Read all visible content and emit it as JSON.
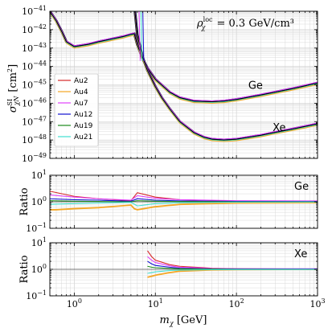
{
  "chart_data": [
    {
      "type": "line",
      "panel": "top",
      "xscale": "log",
      "yscale": "log",
      "xlim": [
        0.5,
        1000
      ],
      "ylim": [
        1e-49,
        1e-41
      ],
      "ylabel": "σ^SI_χN [cm²]",
      "yticks": [
        {
          "value": 1e-49,
          "base": "10",
          "exp": "−49"
        },
        {
          "value": 1e-48,
          "base": "10",
          "exp": "−48"
        },
        {
          "value": 1e-47,
          "base": "10",
          "exp": "−47"
        },
        {
          "value": 1e-46,
          "base": "10",
          "exp": "−46"
        },
        {
          "value": 1e-45,
          "base": "10",
          "exp": "−45"
        },
        {
          "value": 1e-44,
          "base": "10",
          "exp": "−44"
        },
        {
          "value": 1e-43,
          "base": "10",
          "exp": "−43"
        },
        {
          "value": 1e-42,
          "base": "10",
          "exp": "−42"
        },
        {
          "value": 1e-41,
          "base": "10",
          "exp": "−41"
        }
      ],
      "annotation": "ρ^loc_χ = 0.3 GeV/cm³",
      "annotation_parts": {
        "sym": "ρ",
        "sup": "loc",
        "sub": "χ",
        "rest": " = 0.3 GeV/cm³"
      },
      "curve_labels": [
        {
          "text": "Ge",
          "x": 140,
          "y": 6e-46
        },
        {
          "text": "Xe",
          "x": 280,
          "y": 3e-48
        }
      ],
      "legend": {
        "placement": "lower-left",
        "entries": [
          {
            "name": "Au2",
            "color": "#d62728"
          },
          {
            "name": "Au4",
            "color": "#f5a623"
          },
          {
            "name": "Au7",
            "color": "#e040fb"
          },
          {
            "name": "Au12",
            "color": "#1010d0"
          },
          {
            "name": "Au19",
            "color": "#1a8a1a"
          },
          {
            "name": "Au21",
            "color": "#40e0d0"
          }
        ]
      },
      "series": [
        {
          "target": "Ge",
          "x": [
            0.5,
            0.6,
            0.7,
            0.8,
            1,
            1.5,
            2,
            3,
            4,
            5,
            5.5,
            6,
            7,
            8,
            10,
            15,
            20,
            30,
            50,
            70,
            100,
            200,
            300,
            500,
            1000
          ],
          "y": [
            1e-41,
            3e-42,
            8e-43,
            2.2e-43,
            1.2e-43,
            1.6e-43,
            2.2e-43,
            3.2e-43,
            4.2e-43,
            5.5e-43,
            6e-43,
            1.5e-43,
            2.5e-44,
            8e-45,
            2e-45,
            4e-46,
            2e-46,
            1.3e-46,
            1.2e-46,
            1.3e-46,
            1.6e-46,
            2.8e-46,
            4e-46,
            6.3e-46,
            1.25e-45
          ]
        },
        {
          "target": "Xe",
          "x": [
            5.6,
            6,
            7,
            8,
            10,
            12,
            15,
            20,
            30,
            40,
            50,
            70,
            100,
            200,
            300,
            500,
            1000
          ],
          "y": [
            1e-41,
            5e-43,
            3e-44,
            6e-45,
            8e-46,
            2e-46,
            5e-47,
            1e-47,
            2.5e-48,
            1.4e-48,
            1.1e-48,
            1e-48,
            1.1e-48,
            1.8e-48,
            2.6e-48,
            4e-48,
            7.5e-48
          ]
        }
      ]
    },
    {
      "type": "line",
      "panel": "middle",
      "panel_label": "Ge",
      "xscale": "log",
      "yscale": "log",
      "xlim": [
        0.5,
        1000
      ],
      "ylim": [
        0.1,
        10
      ],
      "ylabel": "Ratio",
      "yticks": [
        {
          "value": 0.1,
          "base": "10",
          "exp": "−1"
        },
        {
          "value": 1,
          "base": "10",
          "exp": "0"
        },
        {
          "value": 10,
          "base": "10",
          "exp": "1"
        }
      ],
      "series": [
        {
          "name": "Au2",
          "x": [
            0.5,
            1,
            2,
            5,
            6,
            10,
            20,
            100,
            1000
          ],
          "y": [
            2.5,
            1.6,
            1.3,
            1.1,
            2.2,
            1.5,
            1.2,
            1.05,
            1.0
          ]
        },
        {
          "name": "Au4",
          "x": [
            0.5,
            0.6,
            1,
            2,
            5,
            5.5,
            6,
            10,
            20,
            100,
            1000
          ],
          "y": [
            0.5,
            0.5,
            0.55,
            0.6,
            0.75,
            0.55,
            0.5,
            0.65,
            0.8,
            0.9,
            0.93
          ]
        },
        {
          "name": "Au7",
          "x": [
            0.5,
            1,
            2,
            5,
            6,
            10,
            20,
            100,
            1000
          ],
          "y": [
            1.8,
            1.5,
            1.3,
            1.15,
            1.7,
            1.35,
            1.2,
            1.1,
            1.08
          ]
        },
        {
          "name": "Au12",
          "x": [
            0.5,
            1,
            2,
            5,
            6,
            10,
            20,
            100,
            1000
          ],
          "y": [
            1.3,
            1.2,
            1.15,
            1.05,
            1.3,
            1.15,
            1.08,
            1.03,
            1.02
          ]
        },
        {
          "name": "Au19",
          "x": [
            0.5,
            1,
            2,
            5,
            6,
            10,
            20,
            100,
            1000
          ],
          "y": [
            1.1,
            1.05,
            1.03,
            1.0,
            1.1,
            1.05,
            1.02,
            1.0,
            1.0
          ]
        },
        {
          "name": "Au21",
          "x": [
            0.5,
            1,
            2,
            5,
            6,
            10,
            20,
            100,
            1000
          ],
          "y": [
            0.8,
            0.85,
            0.9,
            0.95,
            0.7,
            0.85,
            0.92,
            0.97,
            0.98
          ]
        }
      ]
    },
    {
      "type": "line",
      "panel": "bottom",
      "panel_label": "Xe",
      "xscale": "log",
      "yscale": "log",
      "xlim": [
        0.5,
        1000
      ],
      "ylim": [
        0.1,
        10
      ],
      "ylabel": "Ratio",
      "xlabel": "m_χ [GeV]",
      "xlabel_parts": {
        "sym": "m",
        "sub": "χ",
        "rest": " [GeV]"
      },
      "yticks": [
        {
          "value": 0.1,
          "base": "10",
          "exp": "−1"
        },
        {
          "value": 1,
          "base": "10",
          "exp": "0"
        },
        {
          "value": 10,
          "base": "10",
          "exp": "1"
        }
      ],
      "xticks": [
        {
          "value": 1,
          "base": "10",
          "exp": "0"
        },
        {
          "value": 10,
          "base": "10",
          "exp": "1"
        },
        {
          "value": 100,
          "base": "10",
          "exp": "2"
        },
        {
          "value": 1000,
          "base": "10",
          "exp": "3"
        }
      ],
      "series": [
        {
          "name": "Au2",
          "x": [
            8,
            9,
            10,
            15,
            20,
            50,
            100,
            1000
          ],
          "y": [
            5,
            3,
            2.2,
            1.5,
            1.3,
            1.1,
            1.05,
            1.02
          ]
        },
        {
          "name": "Au4",
          "x": [
            8,
            9,
            10,
            15,
            20,
            50,
            100,
            1000
          ],
          "y": [
            0.5,
            0.55,
            0.6,
            0.75,
            0.85,
            0.95,
            0.98,
            1.0
          ]
        },
        {
          "name": "Au7",
          "x": [
            8,
            9,
            10,
            15,
            20,
            50,
            100,
            1000
          ],
          "y": [
            3,
            2.2,
            1.8,
            1.35,
            1.2,
            1.08,
            1.05,
            1.05
          ]
        },
        {
          "name": "Au12",
          "x": [
            8,
            9,
            10,
            15,
            20,
            50,
            100,
            1000
          ],
          "y": [
            2,
            1.6,
            1.4,
            1.2,
            1.1,
            1.03,
            1.02,
            1.02
          ]
        },
        {
          "name": "Au19",
          "x": [
            8,
            9,
            10,
            15,
            20,
            50,
            100,
            1000
          ],
          "y": [
            1.3,
            1.2,
            1.15,
            1.08,
            1.05,
            1.02,
            1.0,
            1.0
          ]
        },
        {
          "name": "Au21",
          "x": [
            8,
            9,
            10,
            15,
            20,
            50,
            100,
            1000
          ],
          "y": [
            0.7,
            0.75,
            0.8,
            0.9,
            0.93,
            0.97,
            0.98,
            0.99
          ]
        }
      ]
    }
  ]
}
